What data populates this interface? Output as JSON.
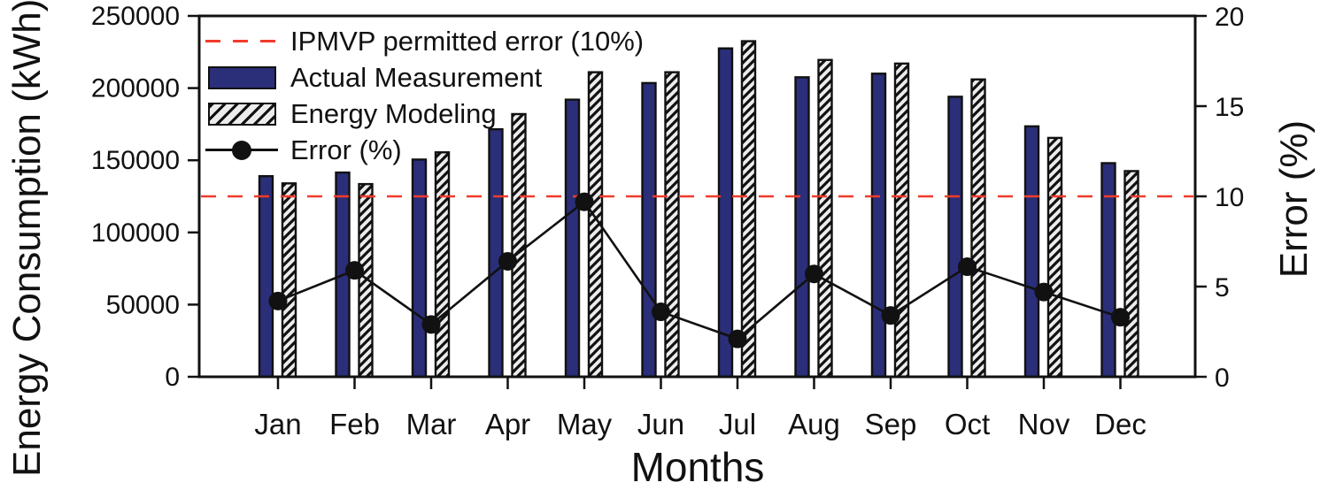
{
  "figure": {
    "background": "#ffffff"
  },
  "chart_data": {
    "type": "bar+line",
    "title": "",
    "xlabel": "Months",
    "ylabel_left": "Energy Consumption (kWh)",
    "ylabel_right": "Error (%)",
    "categories": [
      "Jan",
      "Feb",
      "Mar",
      "Apr",
      "May",
      "Jun",
      "Jul",
      "Aug",
      "Sep",
      "Oct",
      "Nov",
      "Dec"
    ],
    "series": [
      {
        "name": "Actual Measurement",
        "type": "bar",
        "axis": "left",
        "color": "#2b2e78",
        "values": [
          139000,
          141500,
          150500,
          171500,
          192000,
          203500,
          227500,
          207500,
          210000,
          194000,
          173500,
          148000
        ]
      },
      {
        "name": "Energy Modeling",
        "type": "bar",
        "axis": "left",
        "style": "hatched",
        "color": "#ececec",
        "hatch_color": "#111111",
        "values": [
          134000,
          133500,
          155500,
          182000,
          211000,
          211000,
          232500,
          219500,
          217000,
          206000,
          165500,
          142500
        ]
      },
      {
        "name": "Error (%)",
        "type": "line",
        "axis": "right",
        "color": "#111111",
        "marker": "circle",
        "values": [
          4.2,
          5.9,
          2.9,
          6.4,
          9.7,
          3.6,
          2.1,
          5.7,
          3.4,
          6.1,
          4.7,
          3.3
        ]
      }
    ],
    "reference_line": {
      "label": "IPMVP permitted error (10%)",
      "axis": "right",
      "value": 10,
      "color": "#f23b2b",
      "style": "dashed"
    },
    "legend": [
      "IPMVP permitted error (10%)",
      "Actual Measurement",
      "Energy Modeling",
      "Error (%)"
    ],
    "legend_position": "upper-left-inside",
    "yticks_left": [
      0,
      50000,
      100000,
      150000,
      200000,
      250000
    ],
    "yticks_right": [
      0,
      5,
      10,
      15,
      20
    ],
    "ylim_left": [
      0,
      250000
    ],
    "ylim_right": [
      0,
      20
    ],
    "axis_color": "#111111",
    "grid": false
  }
}
